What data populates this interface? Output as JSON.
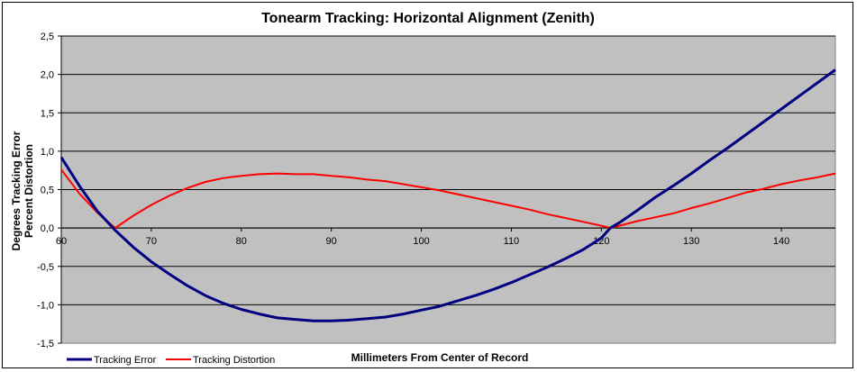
{
  "chart_data": {
    "type": "line",
    "title": "Tonearm Tracking:  Horizontal Alignment (Zenith)",
    "xlabel": "Millimeters From Center of Record",
    "ylabel_lines": [
      "Degrees Tracking Error",
      "Percent Distortion"
    ],
    "xlim": [
      60,
      146
    ],
    "ylim": [
      -1.5,
      2.5
    ],
    "x_ticks": [
      "60",
      "70",
      "80",
      "90",
      "100",
      "110",
      "120",
      "130",
      "140"
    ],
    "y_ticks": [
      "2,5",
      "2,0",
      "1,5",
      "1,0",
      "0,5",
      "0,0",
      "-0,5",
      "-1,0",
      "-1,5"
    ],
    "grid": true,
    "legend_position": "bottom-left",
    "series": [
      {
        "name": "Tracking Error",
        "color": "#000080",
        "x": [
          60,
          62,
          64,
          66,
          68,
          70,
          72,
          74,
          76,
          78,
          80,
          82,
          84,
          86,
          88,
          90,
          92,
          94,
          96,
          98,
          100,
          102,
          104,
          106,
          108,
          110,
          112,
          114,
          116,
          118,
          120,
          121,
          122,
          124,
          126,
          128,
          130,
          132,
          134,
          136,
          138,
          140,
          142,
          144,
          146
        ],
        "y": [
          0.92,
          0.55,
          0.22,
          -0.03,
          -0.25,
          -0.44,
          -0.6,
          -0.75,
          -0.88,
          -0.98,
          -1.06,
          -1.12,
          -1.17,
          -1.19,
          -1.21,
          -1.21,
          -1.2,
          -1.18,
          -1.16,
          -1.12,
          -1.07,
          -1.02,
          -0.95,
          -0.88,
          -0.8,
          -0.71,
          -0.61,
          -0.51,
          -0.4,
          -0.28,
          -0.13,
          0.0,
          0.07,
          0.23,
          0.4,
          0.55,
          0.71,
          0.88,
          1.04,
          1.21,
          1.38,
          1.55,
          1.72,
          1.89,
          2.06
        ]
      },
      {
        "name": "Tracking Distortion",
        "color": "#ff0000",
        "x": [
          60,
          62,
          64,
          66,
          68,
          70,
          72,
          74,
          76,
          78,
          80,
          82,
          84,
          86,
          88,
          90,
          92,
          94,
          96,
          98,
          100,
          102,
          104,
          106,
          108,
          110,
          112,
          114,
          116,
          118,
          120,
          121,
          122,
          124,
          126,
          128,
          130,
          132,
          134,
          136,
          138,
          140,
          142,
          144,
          146
        ],
        "y": [
          0.76,
          0.45,
          0.2,
          0.0,
          0.16,
          0.3,
          0.42,
          0.52,
          0.6,
          0.65,
          0.68,
          0.7,
          0.71,
          0.7,
          0.7,
          0.68,
          0.66,
          0.63,
          0.61,
          0.57,
          0.53,
          0.49,
          0.44,
          0.39,
          0.34,
          0.29,
          0.24,
          0.18,
          0.13,
          0.08,
          0.03,
          0.0,
          0.03,
          0.09,
          0.14,
          0.19,
          0.26,
          0.32,
          0.39,
          0.46,
          0.51,
          0.57,
          0.62,
          0.66,
          0.71
        ]
      }
    ]
  }
}
